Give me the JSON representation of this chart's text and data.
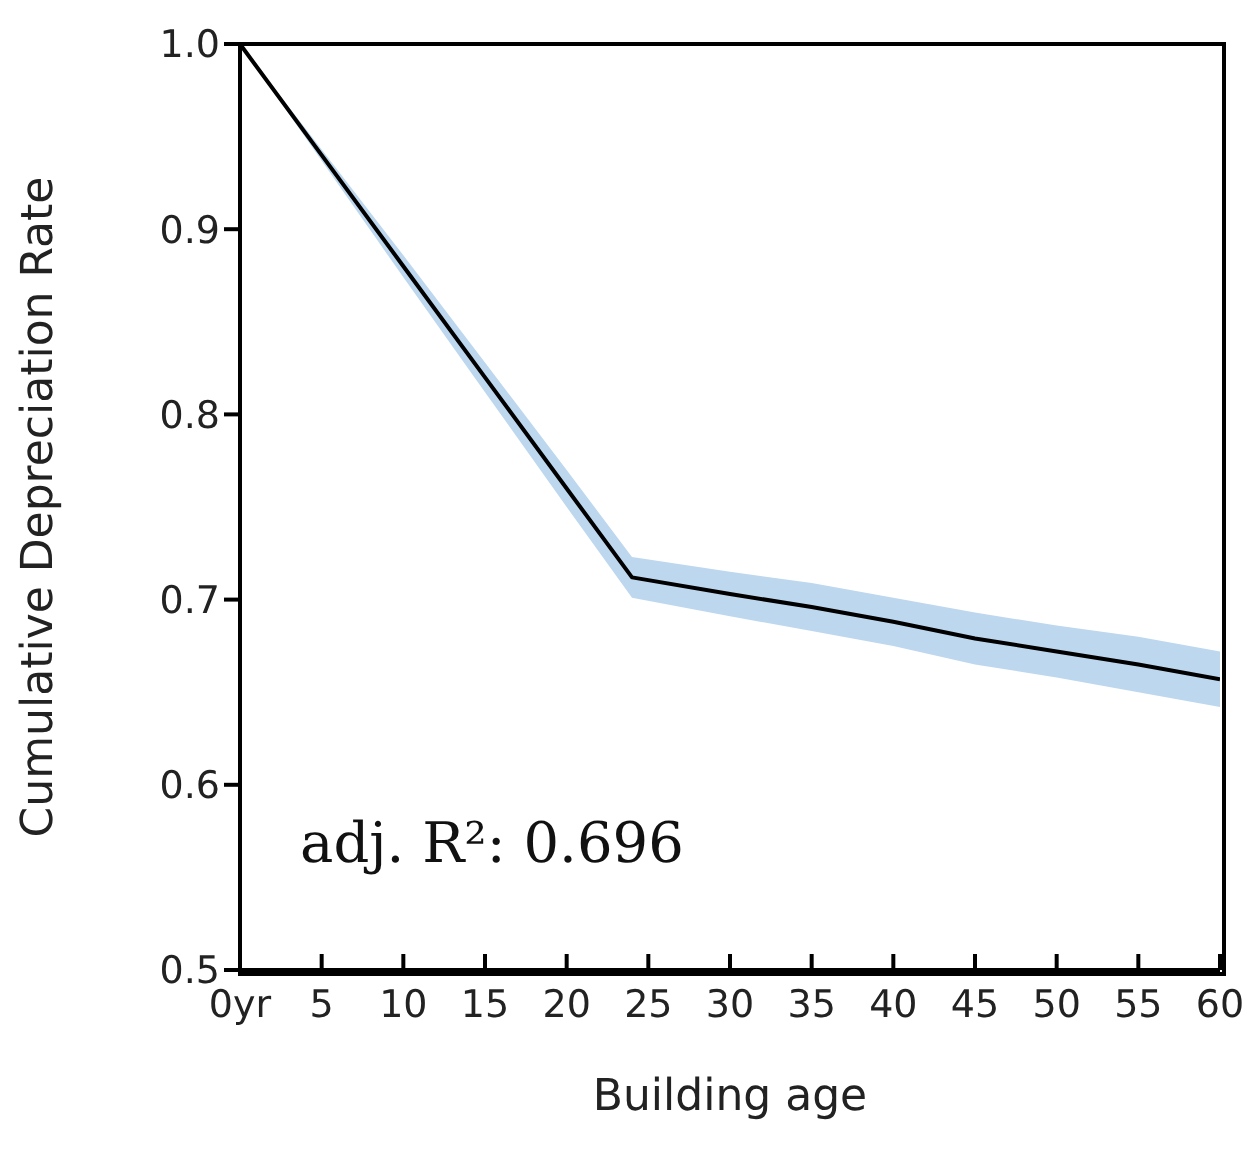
{
  "chart_data": {
    "type": "line",
    "xlabel": "Building age",
    "ylabel": "Cumulative Depreciation Rate",
    "x": [
      0,
      5,
      10,
      15,
      20,
      24,
      30,
      35,
      40,
      45,
      50,
      55,
      60
    ],
    "series": [
      {
        "color": "#000000",
        "values": [
          1.0,
          0.94,
          0.88,
          0.82,
          0.76,
          0.712,
          0.703,
          0.696,
          0.688,
          0.679,
          0.672,
          0.665,
          0.657
        ],
        "lower": [
          1.0,
          0.937,
          0.874,
          0.812,
          0.75,
          0.701,
          0.691,
          0.683,
          0.675,
          0.665,
          0.658,
          0.65,
          0.642
        ],
        "upper": [
          1.0,
          0.943,
          0.886,
          0.828,
          0.77,
          0.723,
          0.715,
          0.709,
          0.701,
          0.693,
          0.686,
          0.68,
          0.672
        ]
      }
    ],
    "xlim": [
      0,
      60
    ],
    "xticks": [
      {
        "value": 0,
        "label": "0yr"
      },
      5,
      10,
      15,
      20,
      25,
      30,
      35,
      40,
      45,
      50,
      55,
      60
    ],
    "ylim": [
      0.5,
      1.0
    ],
    "yticks": [
      0.5,
      0.6,
      0.7,
      0.8,
      0.9,
      {
        "value": 1.0,
        "label": "1.0"
      }
    ],
    "annotations": [
      "adj. R²: 0.696"
    ],
    "grid": false,
    "marker": "none",
    "line_style": "solid"
  }
}
